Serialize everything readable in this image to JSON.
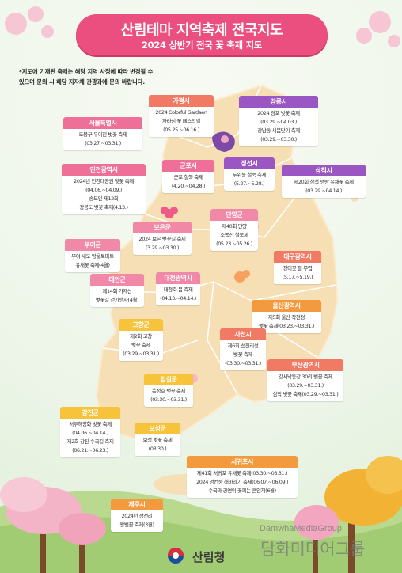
{
  "banner": {
    "title": "산림테마 지역축제 전국지도",
    "subtitle": "2024 상반기 전국 꽃 축제 지도"
  },
  "notice": {
    "line1": "*지도에 기재된 축제는 해당 지역 사정에 따라 변경될 수",
    "line2": "있으며 문의 시 해당 지자체 관광과에 문의 바랍니다."
  },
  "regions": [
    {
      "name": "서울특별시",
      "lines": [
        "도봉구 우이천 벚꽃 축제",
        "(03.27.~03.31.)"
      ]
    },
    {
      "name": "가평시",
      "lines": [
        "2024 Colorful Gardaen",
        "자라섬 꽃 페스티벌",
        "(05.25.~06.16.)"
      ]
    },
    {
      "name": "강릉시",
      "lines": [
        "2024 경포 벚꽃 축제",
        "(03.29.~04.03.)",
        "강남동 새봄맞이 축제",
        "(03.29.~03.30.)"
      ]
    },
    {
      "name": "인천광역시",
      "lines": [
        "2024년 인천대공원 벚꽃 축제",
        "(04.06.~04.09.)",
        "송도인 제12회",
        "장봉도 벚꽃 축제(4.13.)"
      ]
    },
    {
      "name": "군포시",
      "lines": [
        "군포 철쭉 축제",
        "(4.20.~04.28.)"
      ]
    },
    {
      "name": "정선시",
      "lines": [
        "두위봉 철쭉 축제",
        "(5.27.~5.28.)"
      ]
    },
    {
      "name": "삼척시",
      "lines": [
        "제20회 삼척 맹방 유채꽃 축제",
        "(03.29.~04.14.)"
      ]
    },
    {
      "name": "단양군",
      "lines": [
        "제40회 단양",
        "소백산 철쭉제",
        "(05.23.~05.26.)"
      ]
    },
    {
      "name": "보은군",
      "lines": [
        "2024 보은 벚꽃길 축제",
        "(3.29.~03.30.)"
      ]
    },
    {
      "name": "부여군",
      "lines": [
        "부여 세도 방울토마토",
        "유채꽃 축제(4월)"
      ]
    },
    {
      "name": "대구광역시",
      "lines": [
        "장미꽃 필 무렵",
        "(5.17.~5.19.)"
      ]
    },
    {
      "name": "태안군",
      "lines": [
        "제14회 가재산",
        "벚꽃길 걷기행사(4월)"
      ]
    },
    {
      "name": "대전광역시",
      "lines": [
        "대청호 봄 축제",
        "(04.13.~04.14.)"
      ]
    },
    {
      "name": "울산광역시",
      "lines": [
        "제5회 울산 작천정",
        "벚꽃 축제(03.23.~03.31.)"
      ]
    },
    {
      "name": "고창군",
      "lines": [
        "제2회 고창",
        "벚꽃 축제",
        "(03.29.~03.31.)"
      ]
    },
    {
      "name": "사천시",
      "lines": [
        "제6회 선진리성",
        "벚꽃 축제",
        "(03.30.~03.31.)"
      ]
    },
    {
      "name": "부산광역시",
      "lines": [
        "강서낙동강 30리 벚꽃 축제",
        "(03.29.~03.31.)",
        "삼락 벚꽃 축제(03.29.~03.31.)"
      ]
    },
    {
      "name": "임실군",
      "lines": [
        "옥정호 벚꽃 축제",
        "(03.30.~03.31.)"
      ]
    },
    {
      "name": "강진군",
      "lines": [
        "서부해양화 벚꽃 축제",
        "(04.06.~04.14.)",
        "제2회 강진 수국길 축제",
        "(06.21.~06.23.)"
      ]
    },
    {
      "name": "보성군",
      "lines": [
        "보성 벚꽃 축제",
        "(03.30.)"
      ]
    },
    {
      "name": "서귀포시",
      "lines": [
        "제41회 서귀포 유채꽃 축제(03.30.~03.31.)",
        "2024 엉컨둥 해바라기 축제(06.07.~06.09.)",
        "수국과 공연이 꽃피는 혼인지(6월)"
      ]
    },
    {
      "name": "제주시",
      "lines": [
        "2024년 장전리",
        "왕벚꽃 축제(3월)"
      ]
    }
  ],
  "footer": {
    "org_name": "산림청",
    "watermark_en": "DamwhaMediaGroup",
    "watermark_ko": "담화미디어그룹"
  },
  "colors": {
    "banner": "#ea4f80",
    "map_land": "#f6dfb4",
    "map_stroke": "#ffffff",
    "background": "#e9f3e4"
  },
  "icons": [
    "cherry-blossom-icon",
    "tree-icon",
    "forest-service-logo-icon"
  ]
}
